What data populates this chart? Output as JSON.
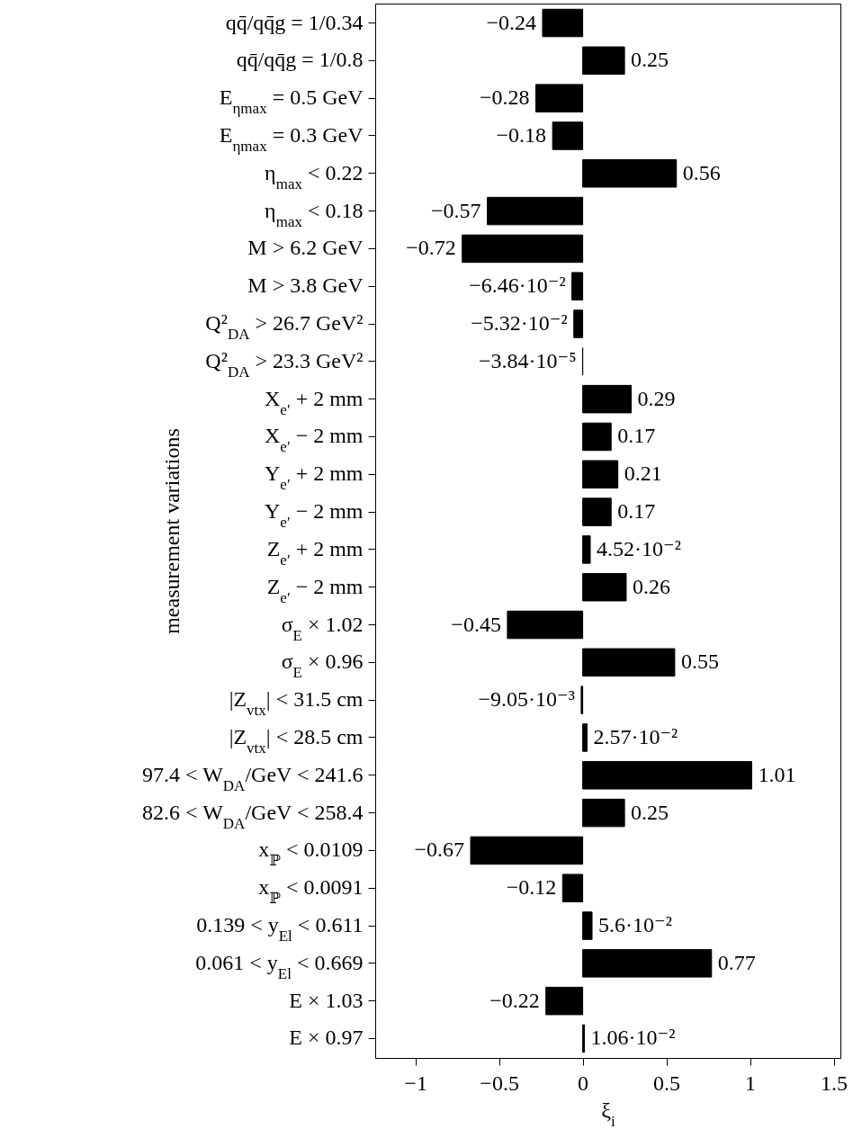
{
  "chart_data": {
    "type": "bar",
    "orientation": "horizontal",
    "xlabel": "ξ$_{i}$",
    "ylabel": "measurement variations",
    "categories": [
      "qq̄/qq̄g = 1/0.34",
      "qq̄/qq̄g = 1/0.8",
      "E$_{ηmax}$ = 0.5 GeV",
      "E$_{ηmax}$ = 0.3 GeV",
      "η$_{max}$ < 0.22",
      "η$_{max}$ < 0.18",
      "M > 6.2 GeV",
      "M > 3.8 GeV",
      "Q²$_{DA}$ > 26.7 GeV²",
      "Q²$_{DA}$ > 23.3 GeV²",
      "X$_{e′}$ + 2 mm",
      "X$_{e′}$ − 2 mm",
      "Y$_{e′}$ + 2 mm",
      "Y$_{e′}$ − 2 mm",
      "Z$_{e′}$ + 2 mm",
      "Z$_{e′}$ − 2 mm",
      "σ$_{E}$ × 1.02",
      "σ$_{E}$ × 0.96",
      "|Z$_{vtx}$| < 31.5 cm",
      "|Z$_{vtx}$| < 28.5 cm",
      "97.4 < W$_{DA}$/GeV < 241.6",
      "82.6 < W$_{DA}$/GeV < 258.4",
      "x$_{ℙ}$ < 0.0109",
      "x$_{ℙ}$ < 0.0091",
      "0.139 < y$_{El}$ < 0.611",
      "0.061 < y$_{El}$ < 0.669",
      "E × 1.03",
      "E × 0.97"
    ],
    "values": [
      -0.24,
      0.25,
      -0.28,
      -0.18,
      0.56,
      -0.57,
      -0.72,
      -0.0646,
      -0.0532,
      -3.84e-05,
      0.29,
      0.17,
      0.21,
      0.17,
      0.0452,
      0.26,
      -0.45,
      0.55,
      -0.00905,
      0.0257,
      1.01,
      0.25,
      -0.67,
      -0.12,
      0.056,
      0.77,
      -0.22,
      0.0106
    ],
    "value_labels": [
      "−0.24",
      "0.25",
      "−0.28",
      "−0.18",
      "0.56",
      "−0.57",
      "−0.72",
      "−6.46·10⁻²",
      "−5.32·10⁻²",
      "−3.84·10⁻⁵",
      "0.29",
      "0.17",
      "0.21",
      "0.17",
      "4.52·10⁻²",
      "0.26",
      "−0.45",
      "0.55",
      "−9.05·10⁻³",
      "2.57·10⁻²",
      "1.01",
      "0.25",
      "−0.67",
      "−0.12",
      "5.6·10⁻²",
      "0.77",
      "−0.22",
      "1.06·10⁻²"
    ],
    "color": "#000000",
    "xlim": [
      -1.24,
      1.54
    ],
    "xticks": [
      {
        "value": -1,
        "label": "−1"
      },
      {
        "value": -0.5,
        "label": "−0.5"
      },
      0,
      0.5,
      1,
      1.5
    ],
    "grid": false
  }
}
